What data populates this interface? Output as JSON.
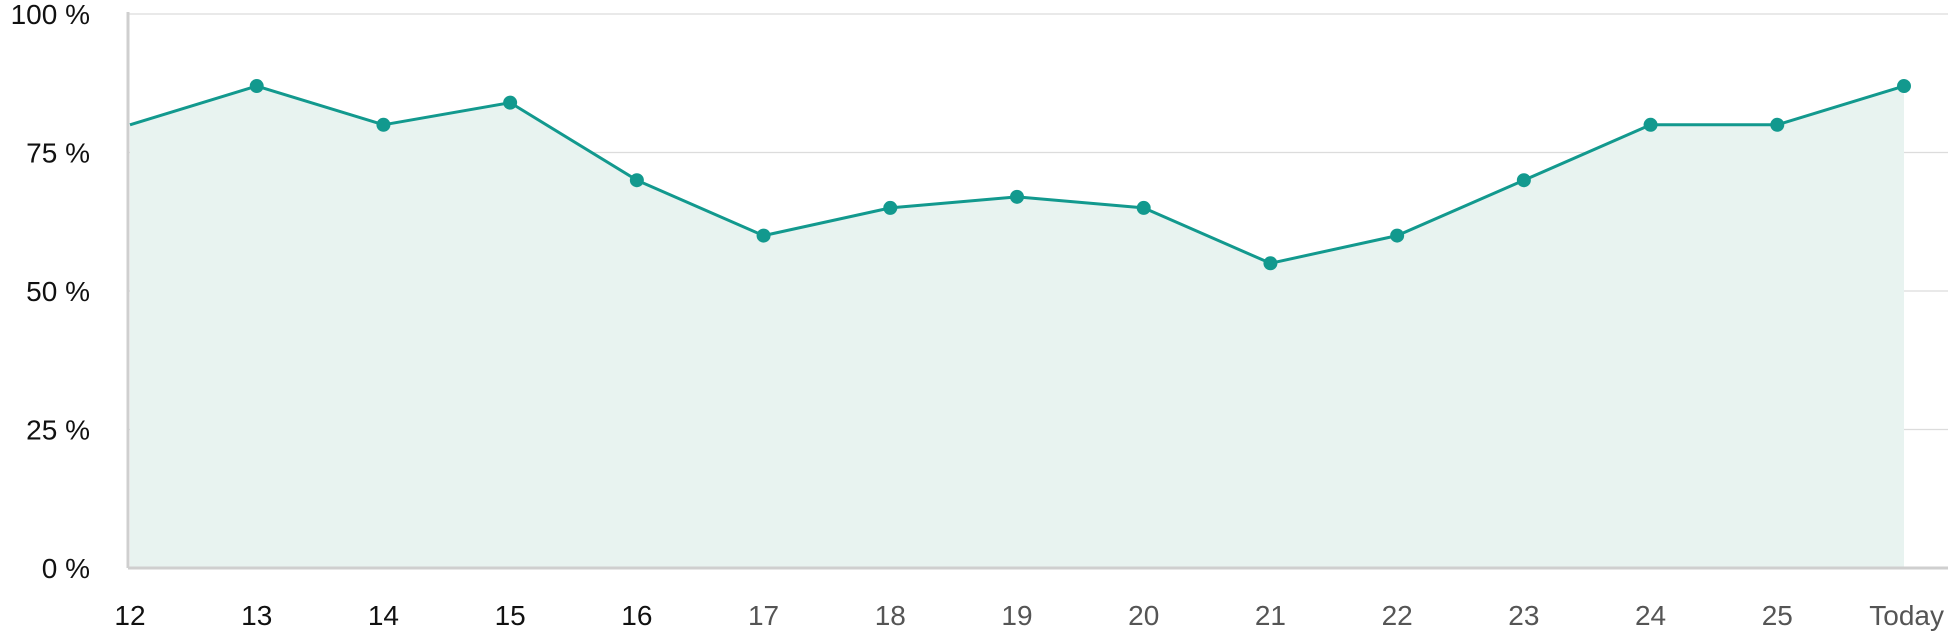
{
  "chart_data": {
    "type": "area",
    "title": "",
    "xlabel": "",
    "ylabel": "",
    "categories": [
      "12",
      "13",
      "14",
      "15",
      "16",
      "17",
      "18",
      "19",
      "20",
      "21",
      "22",
      "23",
      "24",
      "25",
      "Today"
    ],
    "series": [
      {
        "values": [
          80,
          87,
          80,
          84,
          70,
          60,
          65,
          67,
          65,
          55,
          60,
          70,
          80,
          80,
          87
        ]
      }
    ],
    "ylim": [
      0,
      100
    ],
    "yticks": [
      "0 %",
      "25 %",
      "50 %",
      "75 %",
      "100 %"
    ],
    "grid": true,
    "colors": {
      "line": "#12998e",
      "fill": "#e8f3f0",
      "grid": "#dcdcdc",
      "axis": "#cfcfcf",
      "label_dark": "#111111",
      "label_muted": "#555555"
    }
  }
}
